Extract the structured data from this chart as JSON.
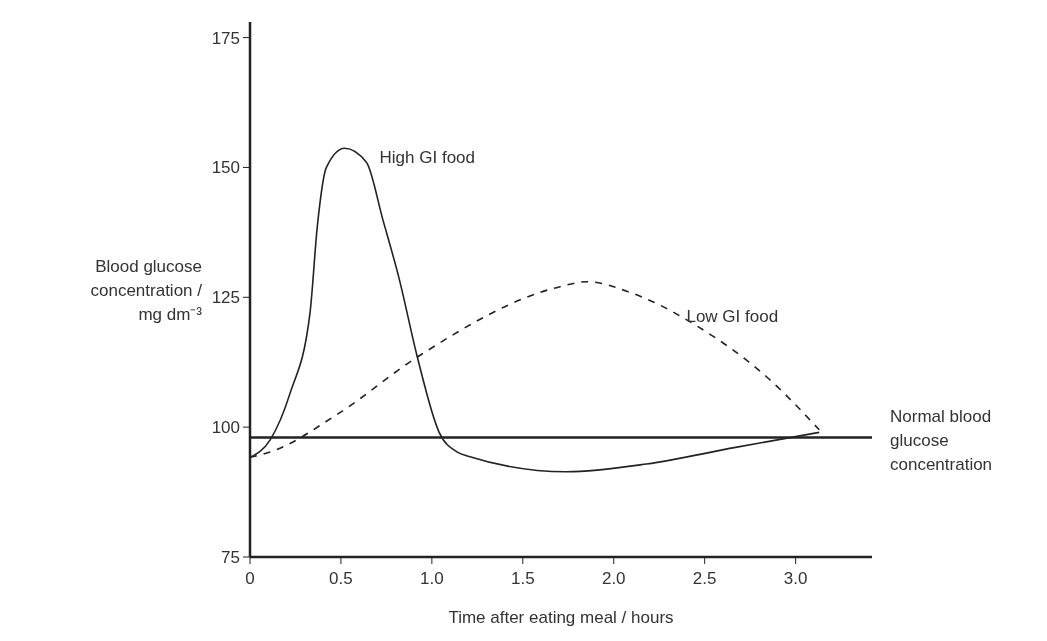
{
  "chart_data": {
    "type": "line",
    "xlabel": "Time after eating meal / hours",
    "ylabel": "Blood glucose concentration / mg dm⁻³",
    "xlim": [
      0,
      3.42
    ],
    "ylim": [
      75,
      178
    ],
    "xticks": [
      0,
      0.5,
      {
        "value": 1,
        "label": "1.0"
      },
      1.5,
      {
        "value": 2,
        "label": "2.0"
      },
      2.5,
      {
        "value": 3,
        "label": "3.0"
      }
    ],
    "yticks": [
      75,
      100,
      125,
      150,
      175
    ],
    "grid": false,
    "series": [
      {
        "name": "High GI food",
        "color": "#222222",
        "line_style": "solid",
        "x": [
          0,
          0.11,
          0.22,
          0.33,
          0.37,
          0.42,
          0.52,
          0.64,
          0.73,
          0.82,
          0.92,
          1.04,
          1.14,
          1.2,
          1.74,
          2.18,
          2.67,
          3.13
        ],
        "values": [
          94.2,
          97.5,
          106.5,
          122,
          138.6,
          150,
          153.7,
          151,
          140,
          128.6,
          113.5,
          99,
          95.2,
          94.4,
          91.4,
          92.9,
          96.1,
          99
        ]
      },
      {
        "name": "Low GI food",
        "color": "#222222",
        "line_style": "dashed",
        "x": [
          0,
          0.11,
          0.49,
          0.92,
          1.7,
          1.85,
          2.1,
          2.47,
          2.84,
          3.13
        ],
        "values": [
          94.2,
          95.2,
          102.7,
          113.5,
          127,
          128,
          125.8,
          119.2,
          109.7,
          99.5
        ]
      }
    ],
    "ref_lines": [
      {
        "axis": "y",
        "value": 98,
        "label": "Normal blood glucose concentration",
        "color": "#222222"
      }
    ]
  }
}
